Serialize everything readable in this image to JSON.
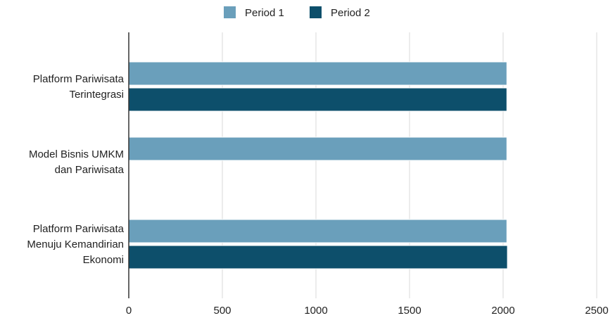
{
  "chart_data": {
    "type": "bar",
    "orientation": "horizontal",
    "categories": [
      [
        "Platform Pariwisata",
        "Terintegrasi"
      ],
      [
        "Model Bisnis UMKM",
        "dan Pariwisata"
      ],
      [
        "Platform Pariwisata",
        "Menuju Kemandirian",
        "Ekonomi"
      ]
    ],
    "series": [
      {
        "name": "Period 1",
        "color": "#6a9fbb",
        "values": [
          2020,
          2020,
          2020
        ]
      },
      {
        "name": "Period 2",
        "color": "#0d4f6b",
        "values": [
          2020,
          null,
          2023
        ]
      }
    ],
    "x_ticks": [
      "0",
      "500",
      "1000",
      "1500",
      "2000",
      "2500"
    ],
    "xlim": [
      0,
      2500
    ],
    "grid": true,
    "legend_position": "top-center",
    "title": "",
    "xlabel": "",
    "ylabel": ""
  }
}
